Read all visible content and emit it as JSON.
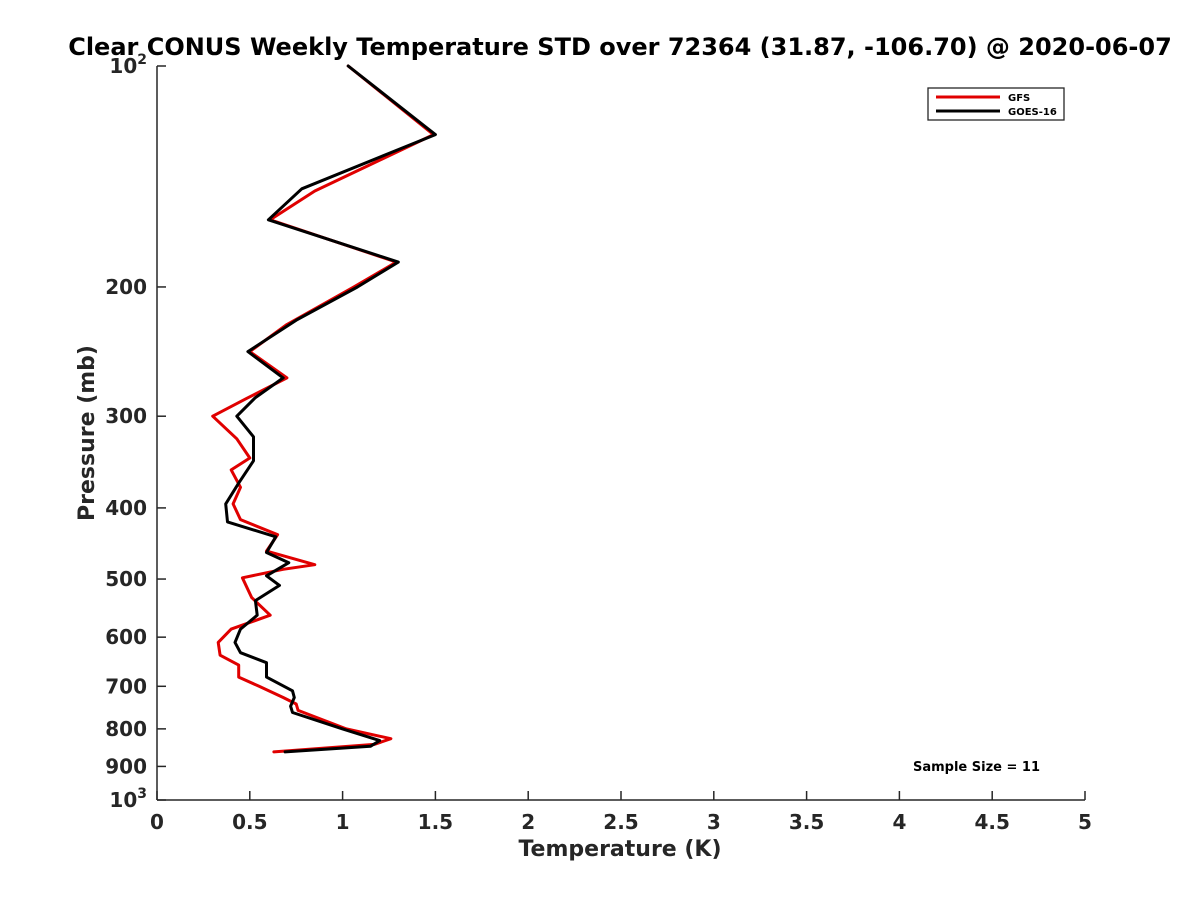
{
  "chart_data": {
    "type": "line",
    "title": "Clear CONUS Weekly Temperature STD over 72364 (31.87, -106.70) @ 2020-06-07",
    "xlabel": "Temperature (K)",
    "ylabel": "Pressure (mb)",
    "xlim": [
      0,
      5
    ],
    "ylim": [
      100,
      1000
    ],
    "y_scale": "log",
    "y_reversed": true,
    "grid": false,
    "legend_position": "top-right",
    "x_ticks": [
      {
        "value": 0,
        "label": "0"
      },
      {
        "value": 0.5,
        "label": "0.5"
      },
      {
        "value": 1,
        "label": "1"
      },
      {
        "value": 1.5,
        "label": "1.5"
      },
      {
        "value": 2,
        "label": "2"
      },
      {
        "value": 2.5,
        "label": "2.5"
      },
      {
        "value": 3,
        "label": "3"
      },
      {
        "value": 3.5,
        "label": "3.5"
      },
      {
        "value": 4,
        "label": "4"
      },
      {
        "value": 4.5,
        "label": "4.5"
      },
      {
        "value": 5,
        "label": "5"
      }
    ],
    "y_ticks": [
      {
        "value": 100,
        "label": "10",
        "sup": "2"
      },
      {
        "value": 200,
        "label": "200"
      },
      {
        "value": 300,
        "label": "300"
      },
      {
        "value": 400,
        "label": "400"
      },
      {
        "value": 500,
        "label": "500"
      },
      {
        "value": 600,
        "label": "600"
      },
      {
        "value": 700,
        "label": "700"
      },
      {
        "value": 800,
        "label": "800"
      },
      {
        "value": 900,
        "label": "900"
      },
      {
        "value": 1000,
        "label": "10",
        "sup": "3"
      }
    ],
    "series": [
      {
        "name": "GFS",
        "color": "#e00000",
        "points": [
          [
            1.03,
            100
          ],
          [
            1.49,
            124
          ],
          [
            0.85,
            148
          ],
          [
            0.61,
            162
          ],
          [
            1.29,
            185
          ],
          [
            1.06,
            200
          ],
          [
            0.7,
            225
          ],
          [
            0.5,
            245
          ],
          [
            0.7,
            266
          ],
          [
            0.48,
            284
          ],
          [
            0.3,
            300
          ],
          [
            0.43,
            322
          ],
          [
            0.5,
            342
          ],
          [
            0.4,
            355
          ],
          [
            0.45,
            375
          ],
          [
            0.41,
            395
          ],
          [
            0.45,
            415
          ],
          [
            0.65,
            435
          ],
          [
            0.59,
            458
          ],
          [
            0.85,
            478
          ],
          [
            0.68,
            485
          ],
          [
            0.46,
            498
          ],
          [
            0.51,
            530
          ],
          [
            0.61,
            560
          ],
          [
            0.4,
            585
          ],
          [
            0.33,
            610
          ],
          [
            0.34,
            635
          ],
          [
            0.44,
            655
          ],
          [
            0.44,
            680
          ],
          [
            0.55,
            700
          ],
          [
            0.68,
            725
          ],
          [
            0.75,
            740
          ],
          [
            0.76,
            755
          ],
          [
            1.02,
            800
          ],
          [
            1.26,
            825
          ],
          [
            1.17,
            840
          ],
          [
            0.63,
            860
          ]
        ]
      },
      {
        "name": "GOES-16",
        "color": "#000000",
        "points": [
          [
            1.03,
            100
          ],
          [
            1.5,
            124
          ],
          [
            0.78,
            147
          ],
          [
            0.6,
            162
          ],
          [
            1.3,
            185
          ],
          [
            1.08,
            200
          ],
          [
            0.75,
            222
          ],
          [
            0.49,
            245
          ],
          [
            0.68,
            266
          ],
          [
            0.53,
            283
          ],
          [
            0.43,
            300
          ],
          [
            0.52,
            320
          ],
          [
            0.52,
            345
          ],
          [
            0.44,
            370
          ],
          [
            0.37,
            395
          ],
          [
            0.38,
            418
          ],
          [
            0.64,
            438
          ],
          [
            0.59,
            460
          ],
          [
            0.71,
            475
          ],
          [
            0.59,
            495
          ],
          [
            0.66,
            510
          ],
          [
            0.53,
            535
          ],
          [
            0.54,
            560
          ],
          [
            0.45,
            585
          ],
          [
            0.42,
            610
          ],
          [
            0.45,
            630
          ],
          [
            0.59,
            650
          ],
          [
            0.59,
            680
          ],
          [
            0.73,
            710
          ],
          [
            0.74,
            725
          ],
          [
            0.72,
            745
          ],
          [
            0.73,
            760
          ],
          [
            1.0,
            800
          ],
          [
            1.2,
            830
          ],
          [
            1.15,
            845
          ],
          [
            0.69,
            860
          ]
        ]
      }
    ],
    "annotation": "Sample Size = 11"
  }
}
